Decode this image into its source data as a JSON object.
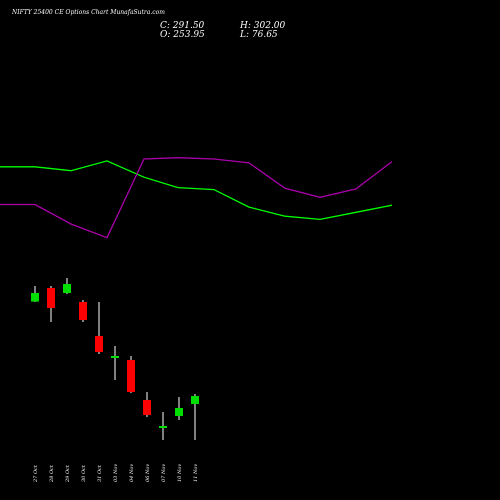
{
  "chart_data": {
    "type": "candlestick",
    "title": "NIFTY 25400 CE Options Chart MunafaSutra.com",
    "ohlc": {
      "close_label": "C:",
      "close": "291.50",
      "open_label": "O:",
      "open": "253.95",
      "high_label": "H:",
      "high": "302.00",
      "low_label": "L:",
      "low": "76.65"
    },
    "colors": {
      "up": "#00dd00",
      "down": "#ff0000",
      "wick": "#ffffff",
      "line1": "#00ff00",
      "line2": "#aa00aa",
      "background": "#000000"
    },
    "x_labels": [
      "27 Oct",
      "28 Oct",
      "29 Oct",
      "30 Oct",
      "31 Oct",
      "03 Nov",
      "04 Nov",
      "06 Nov",
      "07 Nov",
      "10 Nov",
      "11 Nov"
    ],
    "candles": [
      {
        "date": "27 Oct",
        "open": 1032,
        "close": 1075,
        "high": 1110,
        "low": 1030,
        "direction": "up"
      },
      {
        "date": "28 Oct",
        "open": 1100,
        "close": 1000,
        "high": 1110,
        "low": 930,
        "direction": "down"
      },
      {
        "date": "29 Oct",
        "open": 1075,
        "close": 1120,
        "high": 1150,
        "low": 1070,
        "direction": "up"
      },
      {
        "date": "30 Oct",
        "open": 1030,
        "close": 940,
        "high": 1040,
        "low": 930,
        "direction": "down"
      },
      {
        "date": "31 Oct",
        "open": 860,
        "close": 780,
        "high": 1030,
        "low": 770,
        "direction": "down"
      },
      {
        "date": "03 Nov",
        "open": 750,
        "close": 760,
        "high": 810,
        "low": 640,
        "direction": "up"
      },
      {
        "date": "04 Nov",
        "open": 740,
        "close": 580,
        "high": 760,
        "low": 575,
        "direction": "down"
      },
      {
        "date": "06 Nov",
        "open": 540,
        "close": 465,
        "high": 580,
        "low": 455,
        "direction": "down"
      },
      {
        "date": "07 Nov",
        "open": 400,
        "close": 410,
        "high": 480,
        "low": 340,
        "direction": "up"
      },
      {
        "date": "10 Nov",
        "open": 460,
        "close": 500,
        "high": 555,
        "low": 440,
        "direction": "up"
      },
      {
        "date": "11 Nov",
        "open": 520,
        "close": 560,
        "high": 570,
        "low": 340,
        "direction": "up"
      }
    ],
    "line_series": [
      {
        "values": [
          3380,
          3380,
          3320,
          3470,
          3220,
          3060,
          3030,
          2760,
          2620,
          2570,
          2680,
          2790
        ]
      },
      {
        "values": [
          2800,
          2800,
          2500,
          2290,
          3500,
          3520,
          3500,
          3440,
          3050,
          2910,
          3040,
          3460
        ]
      }
    ],
    "grid": false,
    "legend": "none"
  }
}
